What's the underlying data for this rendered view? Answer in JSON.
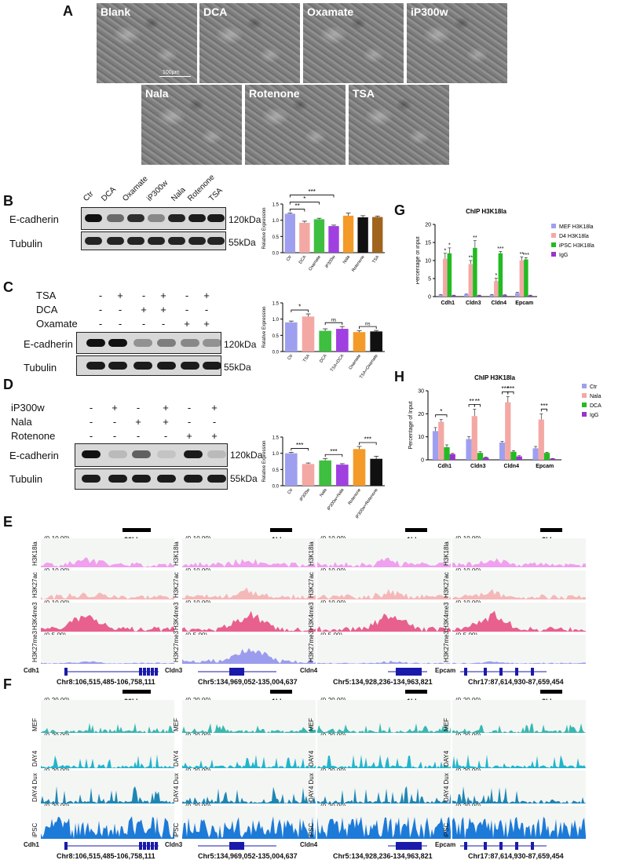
{
  "panel_labels": {
    "A": "A",
    "B": "B",
    "C": "C",
    "D": "D",
    "E": "E",
    "F": "F",
    "G": "G",
    "H": "H"
  },
  "panelA": {
    "row1": [
      "Blank",
      "DCA",
      "Oxamate",
      "iP300w"
    ],
    "row2": [
      "Nala",
      "Rotenone",
      "TSA"
    ],
    "scale": "100μm"
  },
  "panelB": {
    "lanes": [
      "Ctr",
      "DCA",
      "Oxamate",
      "iP300w",
      "Nala",
      "Rotenone",
      "TSA"
    ],
    "rows": [
      "E-cadherin",
      "Tubulin"
    ],
    "kda": [
      "120kDa",
      "55kDa"
    ],
    "chart": {
      "type": "bar",
      "ylabel": "Relative Expression",
      "categories": [
        "Ctr",
        "DCA",
        "Oxamate",
        "iP300w",
        "Nala",
        "Rotenone",
        "TSA"
      ],
      "values": [
        1.2,
        0.92,
        1.03,
        0.82,
        1.14,
        1.09,
        1.1
      ],
      "errors": [
        0.02,
        0.05,
        0.03,
        0.03,
        0.08,
        0.05,
        0.03
      ],
      "colors": [
        "#9f9ff0",
        "#f4a8a4",
        "#3fbf3f",
        "#a040e0",
        "#f49a28",
        "#111111",
        "#a0641e"
      ],
      "ylim": [
        0,
        1.5
      ],
      "yticks": [
        "0.0",
        "0.5",
        "1.0",
        "1.5"
      ],
      "sig": [
        {
          "a": 0,
          "b": 1,
          "t": "**"
        },
        {
          "a": 0,
          "b": 2,
          "t": "*"
        },
        {
          "a": 0,
          "b": 3,
          "t": "***"
        }
      ]
    }
  },
  "panelC": {
    "treatments": [
      "TSA",
      "DCA",
      "Oxamate"
    ],
    "signs": [
      [
        "-",
        "+",
        "-",
        "+",
        "-",
        "+"
      ],
      [
        "-",
        "-",
        "+",
        "+",
        "-",
        "-"
      ],
      [
        "-",
        "-",
        "-",
        "-",
        "+",
        "+"
      ]
    ],
    "rows": [
      "E-cadherin",
      "Tubulin"
    ],
    "kda": [
      "120kDa",
      "55kDa"
    ],
    "chart": {
      "type": "bar",
      "ylabel": "Relative Expression",
      "categories": [
        "Ctr",
        "TSA",
        "DCA",
        "TSA+DCA",
        "Oxamate",
        "TSA+Oxamate"
      ],
      "values": [
        0.9,
        1.08,
        0.64,
        0.7,
        0.6,
        0.62
      ],
      "errors": [
        0.04,
        0.08,
        0.06,
        0.07,
        0.04,
        0.03
      ],
      "colors": [
        "#9f9ff0",
        "#f4a8a4",
        "#3fbf3f",
        "#a040e0",
        "#f49a28",
        "#111111"
      ],
      "ylim": [
        0,
        1.5
      ],
      "yticks": [
        "0.0",
        "0.5",
        "1.0",
        "1.5"
      ],
      "sig": [
        {
          "a": 0,
          "b": 1,
          "t": "*"
        },
        {
          "a": 2,
          "b": 3,
          "t": "ns"
        },
        {
          "a": 4,
          "b": 5,
          "t": "ns"
        }
      ]
    }
  },
  "panelD": {
    "treatments": [
      "iP300w",
      "Nala",
      "Rotenone"
    ],
    "signs": [
      [
        "-",
        "+",
        "-",
        "+",
        "-",
        "+"
      ],
      [
        "-",
        "-",
        "+",
        "+",
        "-",
        "-"
      ],
      [
        "-",
        "-",
        "-",
        "-",
        "+",
        "+"
      ]
    ],
    "rows": [
      "E-cadherin",
      "Tubulin"
    ],
    "kda": [
      "120kDa",
      "55kDa"
    ],
    "chart": {
      "type": "bar",
      "ylabel": "Relative Expression",
      "categories": [
        "Ctr",
        "iP300w",
        "Nala",
        "iP300w+Nala",
        "Rotenone",
        "iP300w+Rotenone"
      ],
      "values": [
        1.0,
        0.67,
        0.78,
        0.65,
        1.13,
        0.83
      ],
      "errors": [
        0.03,
        0.03,
        0.06,
        0.03,
        0.08,
        0.08
      ],
      "colors": [
        "#9f9ff0",
        "#f4a8a4",
        "#3fbf3f",
        "#a040e0",
        "#f49a28",
        "#111111"
      ],
      "ylim": [
        0,
        1.5
      ],
      "yticks": [
        "0.0",
        "0.5",
        "1.0",
        "1.5"
      ],
      "sig": [
        {
          "a": 0,
          "b": 1,
          "t": "***"
        },
        {
          "a": 2,
          "b": 3,
          "t": "***"
        },
        {
          "a": 4,
          "b": 5,
          "t": "***"
        }
      ]
    }
  },
  "panelG": {
    "chart": {
      "type": "bar",
      "title": "ChIP H3K18la",
      "ylabel": "Percentage of Input",
      "categories": [
        "Cdh1",
        "Cldn3",
        "Cldn4",
        "Epcam"
      ],
      "series": [
        {
          "name": "MEF H3K18la",
          "color": "#9f9ff0",
          "values": [
            0.5,
            0.6,
            0.5,
            1.0
          ],
          "errors": [
            0.1,
            0.1,
            0.1,
            0.2
          ]
        },
        {
          "name": "D4 H3K18la",
          "color": "#f4a8a4",
          "values": [
            10.5,
            9.0,
            4.3,
            10.0
          ],
          "errors": [
            1.5,
            1.0,
            0.8,
            1.0
          ]
        },
        {
          "name": "iPSC H3K18la",
          "color": "#22bb22",
          "values": [
            12.0,
            13.5,
            12.0,
            10.3
          ],
          "errors": [
            1.5,
            2.0,
            0.5,
            0.5
          ]
        },
        {
          "name": "IgG",
          "color": "#9933cc",
          "values": [
            0.3,
            0.3,
            0.4,
            0.3
          ],
          "errors": [
            0.1,
            0.1,
            0.1,
            0.1
          ]
        }
      ],
      "ylim": [
        0,
        20
      ],
      "yticks": [
        "0",
        "5",
        "10",
        "15",
        "20"
      ],
      "stars": [
        [
          "",
          "*",
          "*",
          ""
        ],
        [
          "",
          "**",
          "**",
          ""
        ],
        [
          "",
          "*",
          "***",
          ""
        ],
        [
          "",
          "**",
          "***",
          ""
        ]
      ]
    }
  },
  "panelH": {
    "chart": {
      "type": "bar",
      "title": "ChIP H3K18la",
      "ylabel": "Percentage of Input",
      "categories": [
        "Cdh1",
        "Cldn3",
        "Cldn4",
        "Epcam"
      ],
      "series": [
        {
          "name": "Ctr",
          "color": "#9f9ff0",
          "values": [
            12.5,
            9.0,
            7.5,
            5.0
          ],
          "errors": [
            1.5,
            1.0,
            0.5,
            0.8
          ]
        },
        {
          "name": "Nala",
          "color": "#f4a8a4",
          "values": [
            16.5,
            19.0,
            25.0,
            17.5
          ],
          "errors": [
            1.0,
            3.0,
            2.5,
            2.5
          ]
        },
        {
          "name": "DCA",
          "color": "#22bb22",
          "values": [
            5.5,
            3.0,
            3.5,
            3.0
          ],
          "errors": [
            1.0,
            0.5,
            0.5,
            0.3
          ]
        },
        {
          "name": "IgG",
          "color": "#9933cc",
          "values": [
            2.5,
            1.0,
            1.5,
            0.5
          ],
          "errors": [
            0.3,
            0.2,
            0.3,
            0.1
          ]
        }
      ],
      "ylim": [
        0,
        30
      ],
      "yticks": [
        "0",
        "10",
        "20",
        "30"
      ],
      "sig": [
        {
          "g": 0,
          "a": 0,
          "b": 2,
          "t": "*"
        },
        {
          "g": 1,
          "a": 0,
          "b": 1,
          "t": "**"
        },
        {
          "g": 1,
          "a": 1,
          "b": 2,
          "t": "**"
        },
        {
          "g": 2,
          "a": 0,
          "b": 1,
          "t": "***"
        },
        {
          "g": 2,
          "a": 1,
          "b": 2,
          "t": "***"
        },
        {
          "g": 3,
          "a": 1,
          "b": 2,
          "t": "***"
        }
      ]
    }
  },
  "panelE": {
    "tracks": [
      "H3K18la",
      "H3K27ac",
      "H3K4me3",
      "H3K27me3"
    ],
    "ranges": [
      "(0-10.00)",
      "(0-10.00)",
      "(0-10.00)",
      "(0-5.00)"
    ],
    "colors": [
      "#f0a0ee",
      "#f5b8b8",
      "#e8608e",
      "#9c9cee"
    ],
    "loci": [
      {
        "gene": "Cdh1",
        "coord": "Chr8:106,515,485-106,758,111",
        "scale": "20kb"
      },
      {
        "gene": "Cldn3",
        "coord": "Chr5:134,969,052-135,004,637",
        "scale": "1kb"
      },
      {
        "gene": "Cldn4",
        "coord": "Chr5:134,928,236-134,963,821",
        "scale": "1kb"
      },
      {
        "gene": "Epcam",
        "coord": "Chr17:87,614,930-87,659,454",
        "scale": "2kb"
      }
    ]
  },
  "panelF": {
    "tracks": [
      "MEF",
      "DAY4",
      "DAY4 Dux",
      "iPSC"
    ],
    "ranges": [
      "(0-20.00)",
      "(0-20.00)",
      "(0-20.00)",
      "(0-20.00)"
    ],
    "colors": [
      "#37b8b0",
      "#22b4cc",
      "#1e86b4",
      "#1c7ad8"
    ],
    "loci": [
      {
        "gene": "Cdh1",
        "coord": "Chr8:106,515,485-106,758,111",
        "scale": "20kb"
      },
      {
        "gene": "Cldn3",
        "coord": "Chr5:134,969,052-135,004,637",
        "scale": "1kb"
      },
      {
        "gene": "Cldn4",
        "coord": "Chr5:134,928,236-134,963,821",
        "scale": "1kb"
      },
      {
        "gene": "Epcam",
        "coord": "Chr17:87,614,930-87,659,454",
        "scale": "2kb"
      }
    ]
  }
}
